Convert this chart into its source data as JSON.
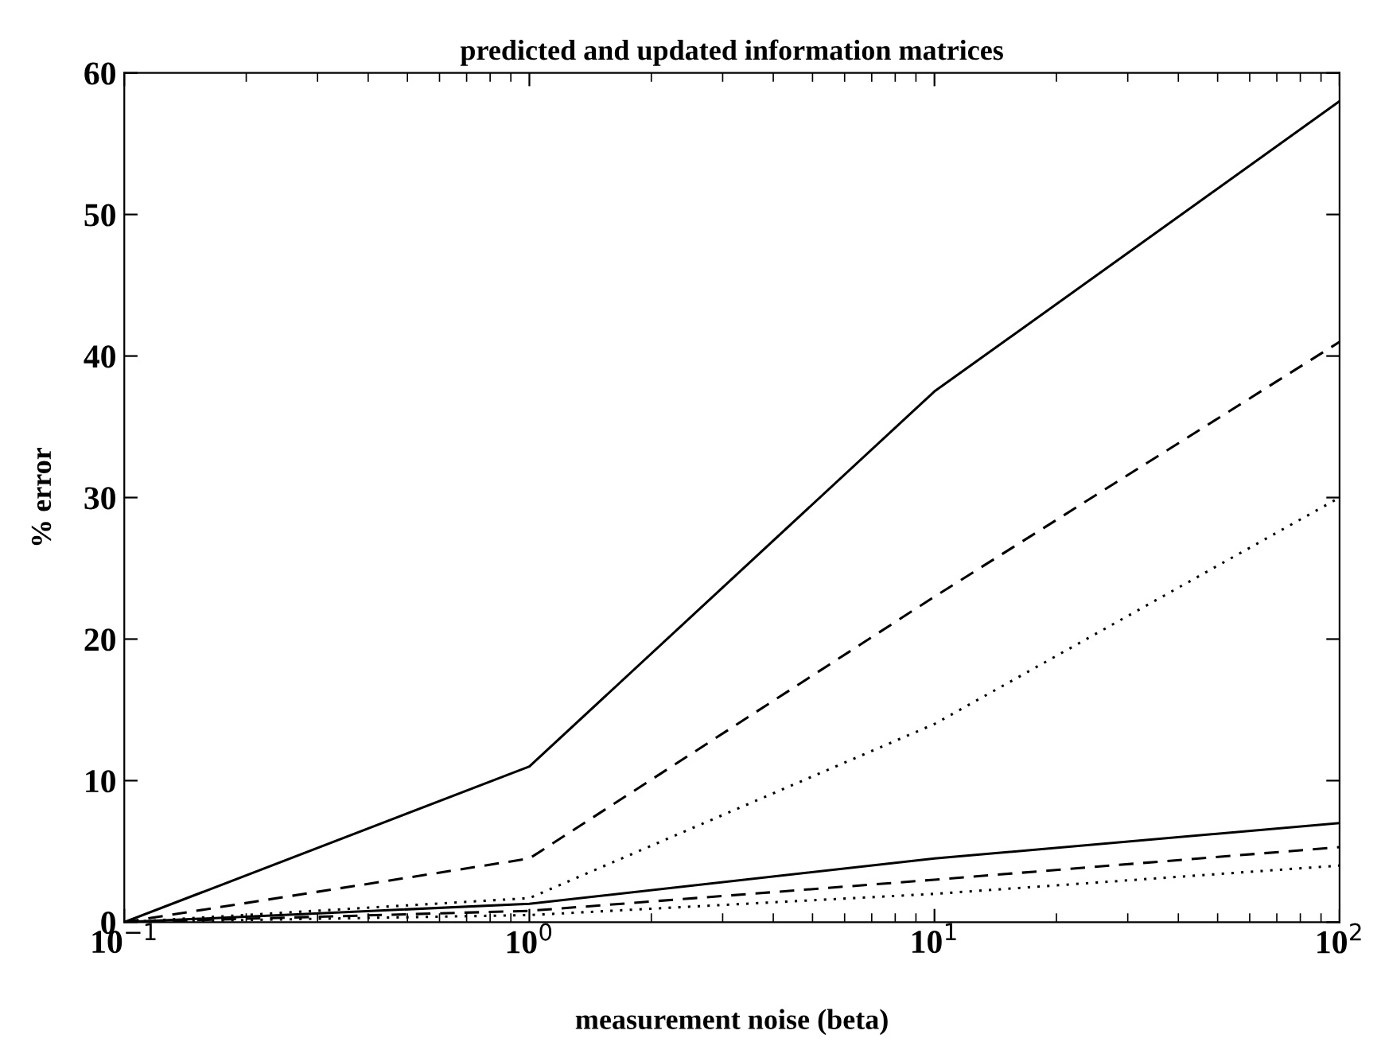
{
  "chart_data": {
    "type": "line",
    "title": "predicted and updated information matrices",
    "xlabel": "measurement noise (beta)",
    "ylabel": "% error",
    "log": "x",
    "x": [
      0.1,
      1,
      10,
      100
    ],
    "series": [
      {
        "color": "#000000",
        "line_style": "solid",
        "values": [
          0,
          11,
          37.5,
          58
        ]
      },
      {
        "color": "#000000",
        "line_style": "dashed",
        "values": [
          0,
          4.5,
          23,
          41
        ]
      },
      {
        "color": "#000000",
        "line_style": "dotted",
        "values": [
          0,
          1.7,
          14,
          30
        ]
      },
      {
        "color": "#000000",
        "line_style": "solid",
        "values": [
          0,
          1.3,
          4.5,
          7
        ]
      },
      {
        "color": "#000000",
        "line_style": "dashed",
        "values": [
          0,
          0.8,
          3,
          5.3
        ]
      },
      {
        "color": "#000000",
        "line_style": "dotted",
        "values": [
          0,
          0.5,
          2,
          4
        ]
      }
    ],
    "xlim": [
      0.1,
      100
    ],
    "xticks": [
      {
        "value": 0.1,
        "label": "10$^{−1}$"
      },
      {
        "value": 1,
        "label": "10$^{0}$"
      },
      {
        "value": 10,
        "label": "10$^{1}$"
      },
      {
        "value": 100,
        "label": "10$^{2}$"
      }
    ],
    "ylim": [
      0,
      60
    ],
    "yticks": [
      0,
      10,
      20,
      30,
      40,
      50,
      60
    ],
    "grid": false,
    "legend": false,
    "marker": "none"
  }
}
